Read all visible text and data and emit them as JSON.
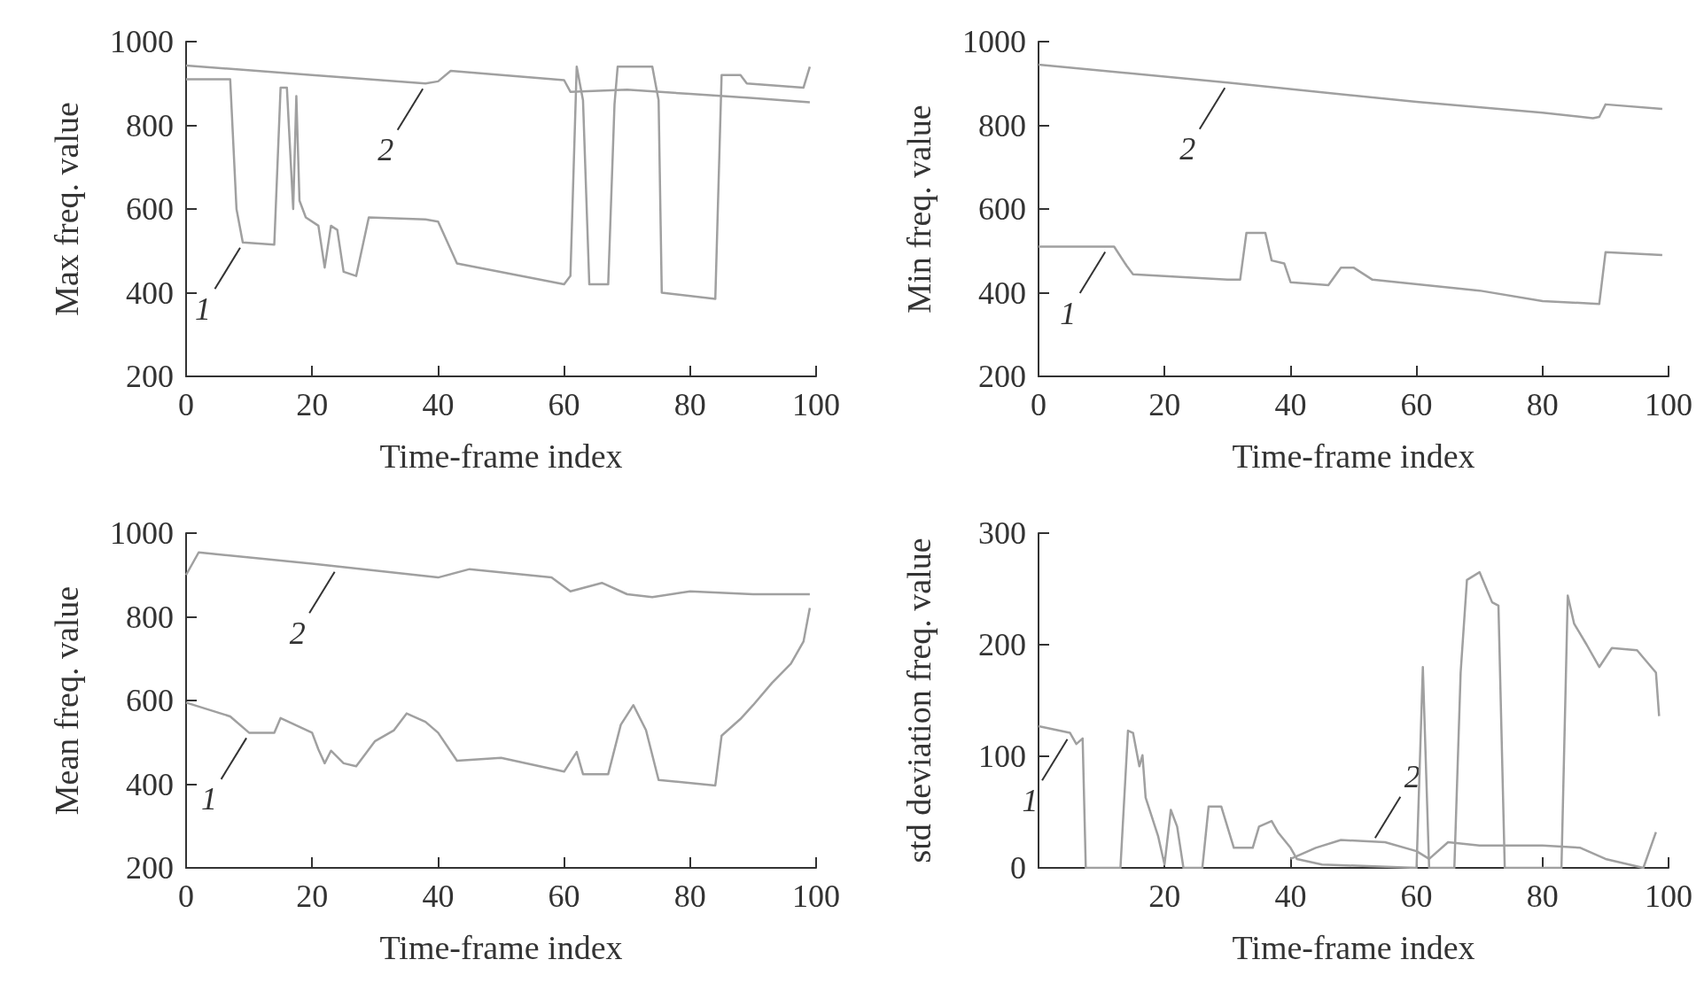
{
  "chart_data": [
    {
      "type": "line",
      "xlabel": "Time-frame index",
      "ylabel": "Max freq. value",
      "xlim": [
        0,
        100
      ],
      "ylim": [
        200,
        1000
      ],
      "xticks": [
        0,
        20,
        40,
        60,
        80,
        100
      ],
      "yticks": [
        200,
        400,
        600,
        800,
        1000
      ],
      "grid": false,
      "marker": "none",
      "line_style": "solid",
      "series": [
        {
          "color": "#a0a0a0",
          "x": [
            0,
            7,
            8,
            9,
            14,
            15,
            16,
            17,
            17.5,
            18,
            19,
            21,
            22,
            23,
            24,
            25,
            27,
            29,
            38,
            40,
            43,
            60,
            61,
            62,
            63,
            64,
            67,
            68,
            68.5,
            74,
            75,
            75.5,
            84,
            85,
            88,
            89,
            98,
            99
          ],
          "values": [
            910,
            910,
            600,
            520,
            515,
            890,
            890,
            600,
            870,
            620,
            580,
            560,
            460,
            560,
            550,
            450,
            440,
            580,
            575,
            570,
            470,
            420,
            440,
            940,
            860,
            420,
            420,
            850,
            940,
            940,
            860,
            400,
            385,
            920,
            920,
            900,
            890,
            940
          ]
        },
        {
          "color": "#a0a0a0",
          "x": [
            0,
            20,
            38,
            40,
            42,
            60,
            61,
            70,
            80,
            90,
            99
          ],
          "values": [
            943,
            920,
            900,
            905,
            930,
            908,
            880,
            885,
            875,
            865,
            855
          ]
        }
      ],
      "annotations": [
        {
          "text": "1",
          "x": 9,
          "y": 520
        },
        {
          "text": "2",
          "x": 38,
          "y": 900
        }
      ]
    },
    {
      "type": "line",
      "xlabel": "Time-frame index",
      "ylabel": "Min freq. value",
      "xlim": [
        0,
        100
      ],
      "ylim": [
        200,
        1000
      ],
      "xticks": [
        0,
        20,
        40,
        60,
        80,
        100
      ],
      "yticks": [
        200,
        400,
        600,
        800,
        1000
      ],
      "grid": false,
      "marker": "none",
      "line_style": "solid",
      "series": [
        {
          "color": "#a0a0a0",
          "x": [
            0,
            12,
            14,
            15,
            30,
            32,
            33,
            36,
            37,
            39,
            40,
            46,
            48,
            50,
            53,
            70,
            80,
            89,
            90,
            99
          ],
          "values": [
            510,
            510,
            464,
            444,
            431,
            431,
            543,
            543,
            477,
            470,
            425,
            418,
            460,
            460,
            431,
            405,
            380,
            373,
            497,
            490
          ]
        },
        {
          "color": "#a0a0a0",
          "x": [
            0,
            30,
            60,
            80,
            88,
            89,
            90,
            99
          ],
          "values": [
            945,
            902,
            856,
            830,
            817,
            820,
            850,
            839
          ]
        }
      ],
      "annotations": [
        {
          "text": "1",
          "x": 11,
          "y": 510
        },
        {
          "text": "2",
          "x": 30,
          "y": 902
        }
      ]
    },
    {
      "type": "line",
      "xlabel": "Time-frame index",
      "ylabel": "Mean freq. value",
      "xlim": [
        0,
        100
      ],
      "ylim": [
        200,
        1000
      ],
      "xticks": [
        0,
        20,
        40,
        60,
        80,
        100
      ],
      "yticks": [
        200,
        400,
        600,
        800,
        1000
      ],
      "grid": false,
      "marker": "none",
      "line_style": "solid",
      "series": [
        {
          "color": "#a0a0a0",
          "x": [
            0,
            7,
            10,
            14,
            15,
            20,
            21,
            22,
            23,
            25,
            27,
            30,
            33,
            35,
            38,
            40,
            43,
            50,
            60,
            62,
            63,
            67,
            69,
            71,
            73,
            75,
            84,
            85,
            88,
            90,
            93,
            96,
            98,
            99
          ],
          "values": [
            595,
            562,
            523,
            523,
            558,
            523,
            483,
            450,
            480,
            450,
            443,
            503,
            529,
            569,
            549,
            523,
            456,
            463,
            430,
            477,
            424,
            424,
            542,
            589,
            529,
            410,
            397,
            516,
            556,
            589,
            642,
            688,
            741,
            821
          ]
        },
        {
          "color": "#a0a0a0",
          "x": [
            0,
            2,
            20,
            40,
            45,
            58,
            61,
            66,
            70,
            74,
            80,
            90,
            99
          ],
          "values": [
            900,
            954,
            927,
            894,
            914,
            894,
            861,
            881,
            854,
            847,
            861,
            854,
            854
          ]
        }
      ],
      "annotations": [
        {
          "text": "1",
          "x": 10,
          "y": 523
        },
        {
          "text": "2",
          "x": 24,
          "y": 920
        }
      ]
    },
    {
      "type": "line",
      "xlabel": "Time-frame index",
      "ylabel": "std deviation freq. value",
      "xlim": [
        0,
        100
      ],
      "ylim": [
        0,
        300
      ],
      "xticks": [
        20,
        40,
        60,
        80,
        100
      ],
      "yticks": [
        0,
        100,
        200,
        300
      ],
      "grid": false,
      "marker": "none",
      "line_style": "solid",
      "series": [
        {
          "color": "#a0a0a0",
          "x": [
            0,
            5,
            6,
            7,
            7.5,
            13,
            14.2,
            15,
            16,
            16.5,
            17,
            19,
            20,
            21,
            22,
            23,
            26,
            27,
            29,
            31,
            34,
            35,
            37,
            38,
            40,
            41,
            45,
            60,
            61,
            62,
            66,
            67,
            68,
            70,
            72,
            73,
            74,
            83,
            84,
            85,
            87,
            89,
            91,
            95,
            98,
            98.5
          ],
          "values": [
            127,
            121,
            111,
            116,
            0,
            0,
            123,
            121,
            91,
            101,
            63,
            28,
            3,
            52,
            37,
            0,
            0,
            55,
            55,
            18,
            18,
            37,
            42,
            32,
            18,
            8,
            3,
            0,
            180,
            0,
            0,
            175,
            258,
            265,
            238,
            235,
            0,
            0,
            244,
            219,
            200,
            180,
            197,
            195,
            175,
            136
          ]
        },
        {
          "color": "#a0a0a0",
          "x": [
            40,
            44,
            48,
            55,
            60,
            62,
            65,
            70,
            80,
            86,
            90,
            96,
            98
          ],
          "values": [
            8,
            18,
            25,
            23,
            15,
            8,
            23,
            20,
            20,
            18,
            8,
            0,
            32
          ]
        }
      ],
      "annotations": [
        {
          "text": "1",
          "x": 5,
          "y": 120
        },
        {
          "text": "2",
          "x": 53,
          "y": 22
        }
      ]
    }
  ]
}
